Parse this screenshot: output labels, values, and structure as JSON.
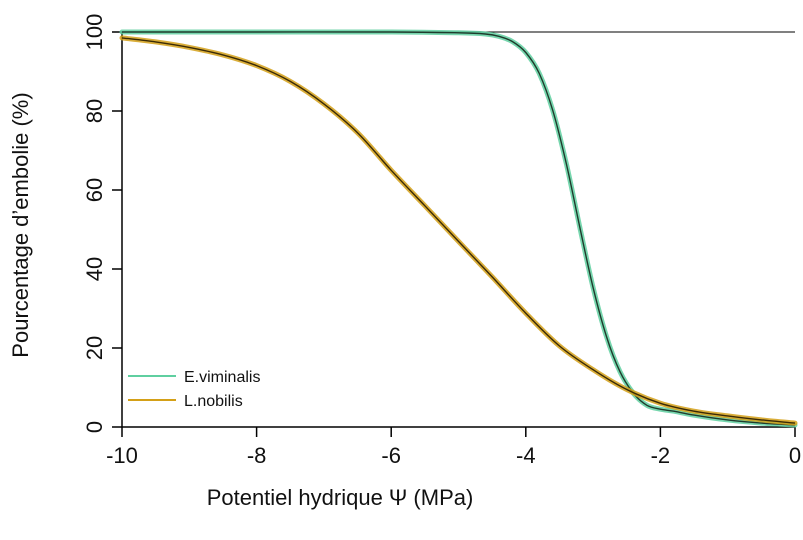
{
  "chart_data": {
    "type": "line",
    "title": "",
    "xlabel": "Potentiel hydrique  Ψ (MPa)",
    "ylabel": "Pourcentage d’embolie (%)",
    "xlim": [
      -10,
      0
    ],
    "ylim": [
      0,
      100
    ],
    "xticks": [
      -10,
      -8,
      -6,
      -4,
      -2,
      0
    ],
    "yticks": [
      0,
      20,
      40,
      60,
      80,
      100
    ],
    "grid": false,
    "legend_position": "bottom-left",
    "series": [
      {
        "name": "E.viminalis",
        "color": "#5fcfa0",
        "x": [
          -10,
          -8,
          -6,
          -5,
          -4.6,
          -4.4,
          -4.2,
          -4.0,
          -3.8,
          -3.6,
          -3.4,
          -3.2,
          -3.0,
          -2.8,
          -2.6,
          -2.4,
          -2.2,
          -2.0,
          -1.8,
          -1.5,
          -1.0,
          -0.5,
          0
        ],
        "y": [
          100,
          100,
          100,
          99.8,
          99.5,
          98.9,
          97.6,
          94.8,
          89.5,
          80.2,
          66.8,
          50.8,
          35.3,
          22.8,
          14.0,
          8.5,
          5.5,
          4.5,
          4.0,
          3.0,
          1.8,
          1.0,
          0.5
        ]
      },
      {
        "name": "L.nobilis",
        "color": "#d4a017",
        "x": [
          -10,
          -9.5,
          -9,
          -8.5,
          -8,
          -7.5,
          -7,
          -6.5,
          -6,
          -5.5,
          -5,
          -4.5,
          -4,
          -3.5,
          -3,
          -2.5,
          -2,
          -1.5,
          -1,
          -0.5,
          0
        ],
        "y": [
          98.5,
          97.5,
          96.1,
          94.2,
          91.5,
          87.5,
          81.8,
          74.5,
          65.0,
          56.0,
          47.0,
          38.0,
          28.8,
          20.5,
          14.5,
          9.5,
          6.0,
          4.0,
          2.8,
          1.8,
          1.0
        ]
      }
    ]
  }
}
